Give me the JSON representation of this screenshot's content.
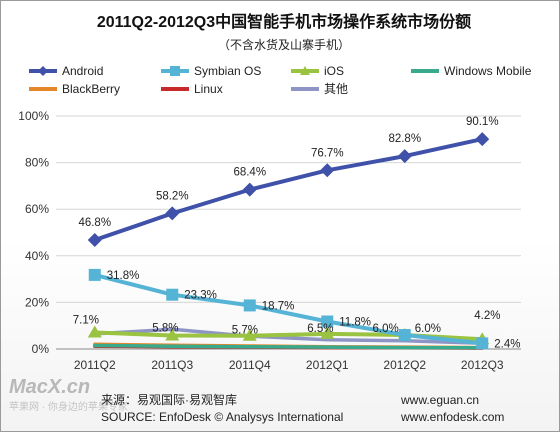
{
  "chart_data": {
    "type": "line",
    "title": "2011Q2-2012Q3中国智能手机市场操作系统市场份额",
    "subtitle": "（不含水货及山寨手机）",
    "categories": [
      "2011Q2",
      "2011Q3",
      "2011Q4",
      "2012Q1",
      "2012Q2",
      "2012Q3"
    ],
    "y_ticks": [
      "0%",
      "20%",
      "40%",
      "60%",
      "80%",
      "100%"
    ],
    "ylim": [
      0,
      100
    ],
    "grid": "horizontal",
    "legend_position": "top",
    "series": [
      {
        "name": "Android",
        "values": [
          46.8,
          58.2,
          68.4,
          76.7,
          82.8,
          90.1
        ],
        "labels": [
          "46.8%",
          "58.2%",
          "68.4%",
          "76.7%",
          "82.8%",
          "90.1%"
        ],
        "color": "#3f51a8",
        "marker": "diamond"
      },
      {
        "name": "Symbian OS",
        "values": [
          31.8,
          23.3,
          18.7,
          11.8,
          6.0,
          2.4
        ],
        "labels": [
          "31.8%",
          "23.3%",
          "18.7%",
          "11.8%",
          "6.0%",
          "2.4%"
        ],
        "color": "#55b4d6",
        "marker": "square"
      },
      {
        "name": "iOS",
        "values": [
          7.1,
          5.8,
          5.7,
          6.5,
          6.0,
          4.2
        ],
        "labels": [
          "7.1%",
          "5.8%",
          "5.7%",
          "6.5%",
          "6.0%",
          "4.2%"
        ],
        "color": "#99c341",
        "marker": "triangle"
      },
      {
        "name": "Windows Mobile",
        "values": [
          1.5,
          1.2,
          1.0,
          0.8,
          0.6,
          0.5
        ],
        "color": "#3aaa8c",
        "marker": "none"
      },
      {
        "name": "BlackBerry",
        "values": [
          2.0,
          1.6,
          1.3,
          1.0,
          0.8,
          0.6
        ],
        "color": "#e6862a",
        "marker": "none"
      },
      {
        "name": "Linux",
        "values": [
          1.2,
          1.0,
          0.8,
          0.6,
          0.5,
          0.4
        ],
        "color": "#c62a2a",
        "marker": "none"
      },
      {
        "name": "其他",
        "values": [
          6.5,
          8.5,
          5.5,
          4.0,
          3.5,
          2.5
        ],
        "color": "#8e95c6",
        "marker": "none"
      }
    ]
  },
  "footer": {
    "source_cn": "来源：易观国际·易观智库",
    "source_en": "SOURCE: EnfoDesk © Analysys International",
    "url1": "www.eguan.cn",
    "url2": "www.enfodesk.com"
  },
  "watermark": {
    "logo": "MacX.cn",
    "sub": "苹果网 · 你身边的苹果专家"
  }
}
